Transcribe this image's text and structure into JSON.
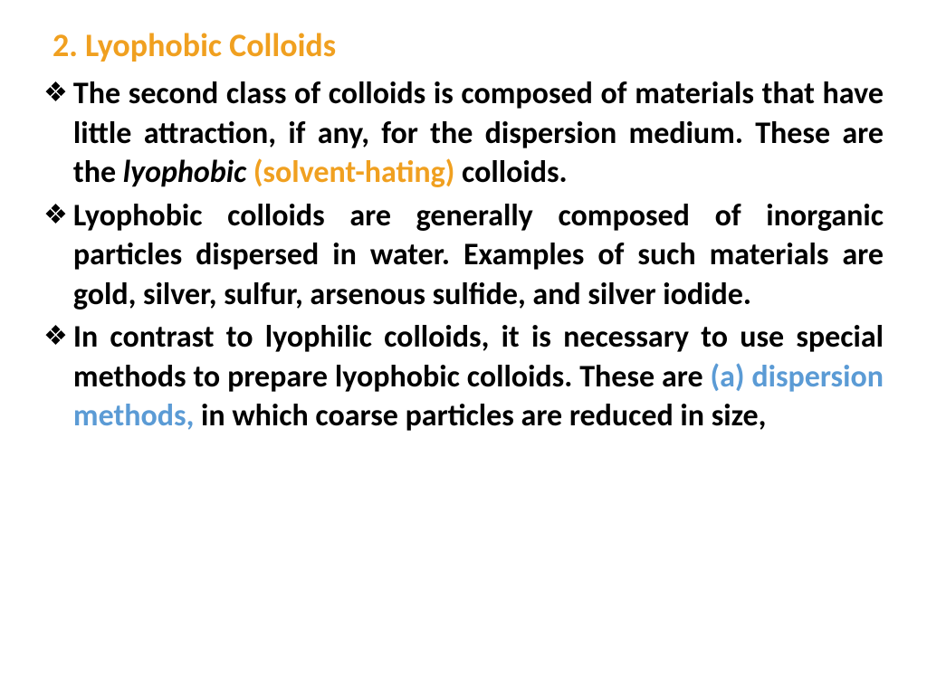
{
  "heading": "2. Lyophobic Colloids",
  "bullets": [
    {
      "prefix": "The second class of colloids is composed of materials that have little attraction, if any, for the dispersion medium. These are the ",
      "italic": "lyophobic ",
      "highlight": "(solvent-hating) ",
      "suffix": "colloids."
    },
    {
      "text": "Lyophobic colloids are generally composed of inorganic particles dispersed in water. Examples of such materials are gold, silver, sulfur, arsenous sulfide, and silver iodide."
    },
    {
      "prefix2": "In contrast to lyophilic colloids, it is necessary to use special methods to prepare lyophobic colloids. These are ",
      "blue": "(a) dispersion methods, ",
      "suffix2": "in which coarse particles are reduced in size,"
    }
  ],
  "colors": {
    "heading": "#f0a020",
    "highlight_orange": "#f0a020",
    "highlight_blue": "#5b9bd5",
    "text": "#000000",
    "background": "#ffffff"
  },
  "typography": {
    "heading_fontsize": 36,
    "body_fontsize": 34,
    "font_family": "Calibri",
    "font_weight": "bold",
    "text_align": "justify",
    "line_height": 1.28
  },
  "bullet_glyph": "❖"
}
